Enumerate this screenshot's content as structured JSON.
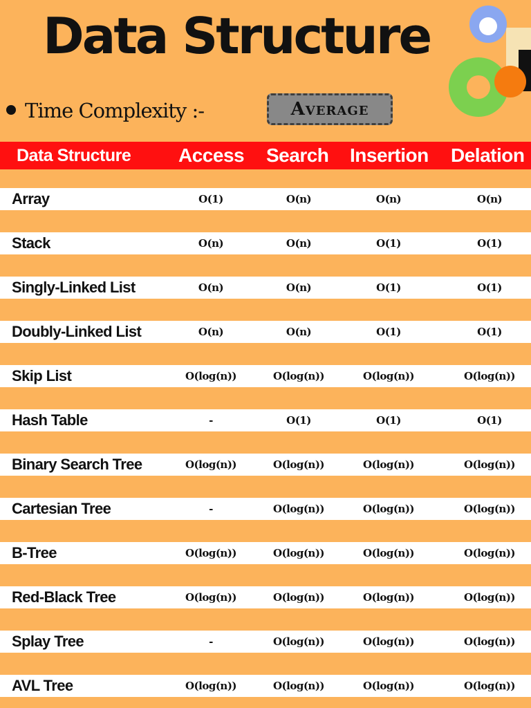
{
  "title": "Data Structure",
  "subtitle": {
    "label": "Time Complexity :-",
    "badge": "Average"
  },
  "colors": {
    "background": "#fcb35b",
    "header_bar": "#ff1010",
    "row_band": "#ffffff",
    "badge": "#888888"
  },
  "table": {
    "headers": [
      "Data Structure",
      "Access",
      "Search",
      "Insertion",
      "Delation"
    ],
    "rows": [
      {
        "name": "Array",
        "access": "O(1)",
        "search": "O(n)",
        "insertion": "O(n)",
        "deletion": "O(n)"
      },
      {
        "name": "Stack",
        "access": "O(n)",
        "search": "O(n)",
        "insertion": "O(1)",
        "deletion": "O(1)"
      },
      {
        "name": "Singly-Linked List",
        "access": "O(n)",
        "search": "O(n)",
        "insertion": "O(1)",
        "deletion": "O(1)"
      },
      {
        "name": "Doubly-Linked List",
        "access": "O(n)",
        "search": "O(n)",
        "insertion": "O(1)",
        "deletion": "O(1)"
      },
      {
        "name": "Skip List",
        "access": "O(log(n))",
        "search": "O(log(n))",
        "insertion": "O(log(n))",
        "deletion": "O(log(n))"
      },
      {
        "name": "Hash Table",
        "access": "-",
        "search": "O(1)",
        "insertion": "O(1)",
        "deletion": "O(1)"
      },
      {
        "name": "Binary Search Tree",
        "access": "O(log(n))",
        "search": "O(log(n))",
        "insertion": "O(log(n))",
        "deletion": "O(log(n))"
      },
      {
        "name": "Cartesian Tree",
        "access": "-",
        "search": "O(log(n))",
        "insertion": "O(log(n))",
        "deletion": "O(log(n))"
      },
      {
        "name": "B-Tree",
        "access": "O(log(n))",
        "search": "O(log(n))",
        "insertion": "O(log(n))",
        "deletion": "O(log(n))"
      },
      {
        "name": "Red-Black Tree",
        "access": "O(log(n))",
        "search": "O(log(n))",
        "insertion": "O(log(n))",
        "deletion": "O(log(n))"
      },
      {
        "name": "Splay Tree",
        "access": "-",
        "search": "O(log(n))",
        "insertion": "O(log(n))",
        "deletion": "O(log(n))"
      },
      {
        "name": "AVL Tree",
        "access": "O(log(n))",
        "search": "O(log(n))",
        "insertion": "O(log(n))",
        "deletion": "O(log(n))"
      }
    ]
  }
}
